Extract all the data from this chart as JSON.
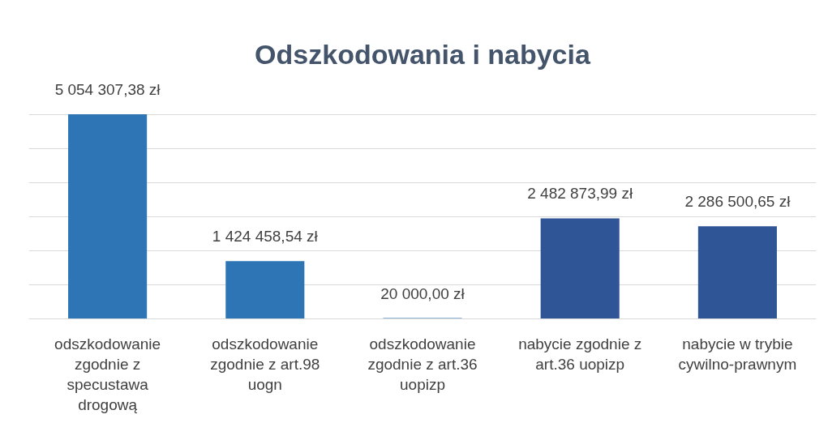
{
  "chart_data": {
    "type": "bar",
    "title": "Odszkodowania i nabycia",
    "categories": [
      "odszkodowanie zgodnie z specustawa drogową",
      "odszkodowanie zgodnie z art.98 uogn",
      "odszkodowanie zgodnie z art.36 uopizp",
      "nabycie zgodnie z art.36 uopizp",
      "nabycie w trybie cywilno-prawnym"
    ],
    "values": [
      5054307.38,
      1424458.54,
      20000.0,
      2482873.99,
      2286500.65
    ],
    "colors": [
      "#2e75b6",
      "#2e75b6",
      "#2e75b6",
      "#2f5597",
      "#2f5597"
    ],
    "value_labels": [
      "5 054 307,38 zł",
      "1 424 458,54 zł",
      "20 000,00 zł",
      "2 482 873,99 zł",
      "2 286 500,65 zł"
    ],
    "grid": "y"
  }
}
